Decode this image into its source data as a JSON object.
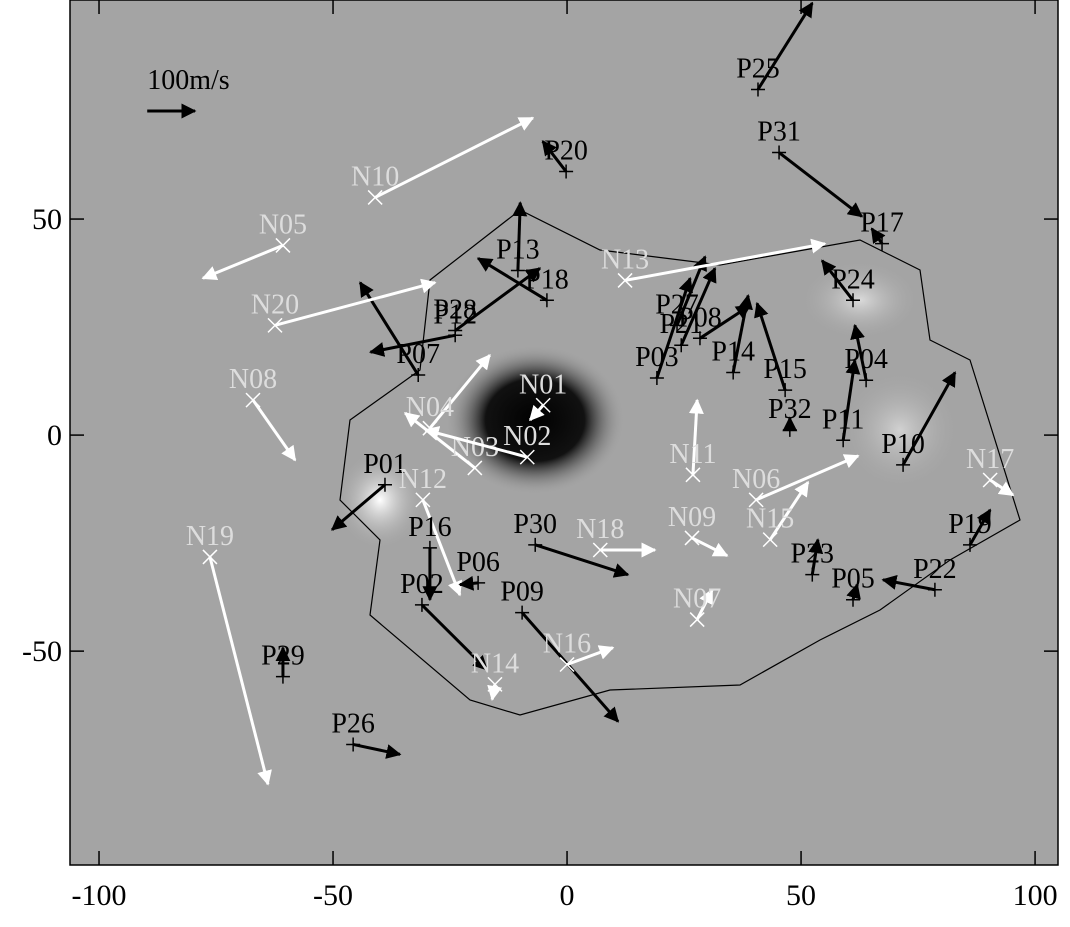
{
  "chart_data": {
    "type": "quiver",
    "xlim": [
      -106.2,
      104.9
    ],
    "ylim": [
      -99.5,
      100.7
    ],
    "xticks": [
      -100,
      -50,
      0,
      50,
      100
    ],
    "yticks": [
      -50,
      0,
      50
    ],
    "reference": {
      "label": "100m/s",
      "x": -89.7,
      "x_end": -79.5,
      "y": 75,
      "color": "#000000"
    },
    "features": [
      {
        "label": "P25",
        "x": 40.8,
        "y": 80,
        "x_end": 52.4,
        "y_end": 100,
        "color": "#000000",
        "marker": "+"
      },
      {
        "label": "P31",
        "x": 45.3,
        "y": 65.4,
        "x_end": 63,
        "y_end": 50.6,
        "color": "#000000",
        "marker": "+"
      },
      {
        "label": "P20",
        "x": -0.2,
        "y": 61,
        "x_end": -5.2,
        "y_end": 68,
        "color": "#000000",
        "marker": "+"
      },
      {
        "label": "P17",
        "x": 67.3,
        "y": 44.3,
        "x_end": 65.1,
        "y_end": 47.8,
        "color": "#000000",
        "marker": "+"
      },
      {
        "label": "P24",
        "x": 61.1,
        "y": 31.2,
        "x_end": 54.5,
        "y_end": 40.4,
        "color": "#000000",
        "marker": "+"
      },
      {
        "label": "P04",
        "x": 63.9,
        "y": 12.7,
        "x_end": 61.5,
        "y_end": 25.4,
        "color": "#000000",
        "marker": "+"
      },
      {
        "label": "P11",
        "x": 59,
        "y": -1.2,
        "x_end": 61.5,
        "y_end": 17.3,
        "color": "#000000",
        "marker": "+"
      },
      {
        "label": "P10",
        "x": 71.8,
        "y": -6.9,
        "x_end": 82.9,
        "y_end": 14.5,
        "color": "#000000",
        "marker": "+"
      },
      {
        "label": "P32",
        "x": 47.6,
        "y": 1.2,
        "x_end": 47.6,
        "y_end": 4,
        "color": "#000000",
        "marker": "+"
      },
      {
        "label": "P15",
        "x": 46.6,
        "y": 10.4,
        "x_end": 40.6,
        "y_end": 30.5,
        "color": "#000000",
        "marker": "+"
      },
      {
        "label": "P14",
        "x": 35.5,
        "y": 14.5,
        "x_end": 38.7,
        "y_end": 32.3,
        "color": "#000000",
        "marker": "+"
      },
      {
        "label": "P08",
        "x": 28.4,
        "y": 22.4,
        "x_end": 39.1,
        "y_end": 30,
        "color": "#000000",
        "marker": "+"
      },
      {
        "label": "P27",
        "x": 23.5,
        "y": 25.4,
        "x_end": 29.5,
        "y_end": 41.3,
        "color": "#000000",
        "marker": "+"
      },
      {
        "label": "P21",
        "x": 24.4,
        "y": 20.8,
        "x_end": 31.6,
        "y_end": 38.6,
        "color": "#000000",
        "marker": "+"
      },
      {
        "label": "P03",
        "x": 19.2,
        "y": 13.2,
        "x_end": 26.3,
        "y_end": 36.3,
        "color": "#000000",
        "marker": "+"
      },
      {
        "label": "N13",
        "x": 12.4,
        "y": 35.8,
        "x_end": 55.1,
        "y_end": 44.3,
        "color": "#ffffff",
        "marker": "x"
      },
      {
        "label": "P18",
        "x": -4.3,
        "y": 31.2,
        "x_end": -19,
        "y_end": 40.9,
        "color": "#000000",
        "marker": "+"
      },
      {
        "label": "P13",
        "x": -10.5,
        "y": 38.1,
        "x_end": -10,
        "y_end": 53.8,
        "color": "#000000",
        "marker": "+"
      },
      {
        "label": "P28",
        "x": -23.9,
        "y": 24.2,
        "x_end": -5.8,
        "y_end": 38.6,
        "color": "#000000",
        "marker": "+"
      },
      {
        "label": "P12",
        "x": -23.9,
        "y": 23.1,
        "x_end": -42,
        "y_end": 19.2,
        "color": "#000000",
        "marker": "+"
      },
      {
        "label": "P07",
        "x": -31.8,
        "y": 13.9,
        "x_end": -44.2,
        "y_end": 35.3,
        "color": "#000000",
        "marker": "+"
      },
      {
        "label": "N20",
        "x": -62.4,
        "y": 25.4,
        "x_end": -28.2,
        "y_end": 35.3,
        "color": "#ffffff",
        "marker": "x"
      },
      {
        "label": "N05",
        "x": -60.7,
        "y": 43.9,
        "x_end": -77.8,
        "y_end": 36.3,
        "color": "#ffffff",
        "marker": "x"
      },
      {
        "label": "N10",
        "x": -41,
        "y": 55,
        "x_end": -7.3,
        "y_end": 73.4,
        "color": "#ffffff",
        "marker": "x"
      },
      {
        "label": "N08",
        "x": -67.1,
        "y": 8.1,
        "x_end": -58.1,
        "y_end": -5.8,
        "color": "#ffffff",
        "marker": "x"
      },
      {
        "label": "N04",
        "x": -29.3,
        "y": 1.6,
        "x_end": -16.5,
        "y_end": 18.5,
        "color": "#ffffff",
        "marker": "x"
      },
      {
        "label": "N03",
        "x": -19.7,
        "y": -7.6,
        "x_end": -34.6,
        "y_end": 5.1,
        "color": "#ffffff",
        "marker": "x"
      },
      {
        "label": "N02",
        "x": -8.5,
        "y": -5.1,
        "x_end": -30.3,
        "y_end": 1.2,
        "color": "#ffffff",
        "marker": "x"
      },
      {
        "label": "N01",
        "x": -5.1,
        "y": 6.9,
        "x_end": -7.9,
        "y_end": 3.5,
        "color": "#ffffff",
        "marker": "x"
      },
      {
        "label": "P01",
        "x": -38.9,
        "y": -11.5,
        "x_end": -50.2,
        "y_end": -21.9,
        "color": "#000000",
        "marker": "+"
      },
      {
        "label": "N12",
        "x": -30.8,
        "y": -15,
        "x_end": -22.9,
        "y_end": -37,
        "color": "#ffffff",
        "marker": "x"
      },
      {
        "label": "P16",
        "x": -29.3,
        "y": -26.1,
        "x_end": -29.3,
        "y_end": -38.1,
        "color": "#000000",
        "marker": "+"
      },
      {
        "label": "P06",
        "x": -19,
        "y": -34.2,
        "x_end": -22.9,
        "y_end": -34.6,
        "color": "#000000",
        "marker": "+"
      },
      {
        "label": "P02",
        "x": -31,
        "y": -39.3,
        "x_end": -17.1,
        "y_end": -54.3,
        "color": "#000000",
        "marker": "+"
      },
      {
        "label": "P09",
        "x": -9.6,
        "y": -41.1,
        "x_end": 10.9,
        "y_end": -66.3,
        "color": "#000000",
        "marker": "+"
      },
      {
        "label": "P30",
        "x": -6.8,
        "y": -25.4,
        "x_end": 13,
        "y_end": -32.3,
        "color": "#000000",
        "marker": "+"
      },
      {
        "label": "N18",
        "x": 7.1,
        "y": -26.6,
        "x_end": 18.8,
        "y_end": -26.6,
        "color": "#ffffff",
        "marker": "x"
      },
      {
        "label": "N11",
        "x": 26.9,
        "y": -9.2,
        "x_end": 27.8,
        "y_end": 8.1,
        "color": "#ffffff",
        "marker": "x"
      },
      {
        "label": "N09",
        "x": 26.7,
        "y": -23.8,
        "x_end": 34.2,
        "y_end": -27.9,
        "color": "#ffffff",
        "marker": "x"
      },
      {
        "label": "N06",
        "x": 40.4,
        "y": -15,
        "x_end": 62.2,
        "y_end": -4.8,
        "color": "#ffffff",
        "marker": "x"
      },
      {
        "label": "N15",
        "x": 43.4,
        "y": -24.2,
        "x_end": 51.5,
        "y_end": -10.9,
        "color": "#ffffff",
        "marker": "x"
      },
      {
        "label": "N07",
        "x": 27.8,
        "y": -42.7,
        "x_end": 31,
        "y_end": -35.8,
        "color": "#ffffff",
        "marker": "x"
      },
      {
        "label": "P23",
        "x": 52.4,
        "y": -32.3,
        "x_end": 53.6,
        "y_end": -24.2,
        "color": "#000000",
        "marker": "+"
      },
      {
        "label": "P05",
        "x": 61.1,
        "y": -38.1,
        "x_end": 62,
        "y_end": -34.6,
        "color": "#000000",
        "marker": "+"
      },
      {
        "label": "P22",
        "x": 78.6,
        "y": -35.8,
        "x_end": 67.5,
        "y_end": -33.5,
        "color": "#000000",
        "marker": "+"
      },
      {
        "label": "P19",
        "x": 86.1,
        "y": -25.4,
        "x_end": 90.4,
        "y_end": -17.3,
        "color": "#000000",
        "marker": "+"
      },
      {
        "label": "N17",
        "x": 90.4,
        "y": -10.4,
        "x_end": 95.3,
        "y_end": -13.9,
        "color": "#ffffff",
        "marker": "x"
      },
      {
        "label": "N19",
        "x": -76.3,
        "y": -28.2,
        "x_end": -63.9,
        "y_end": -80.8,
        "color": "#ffffff",
        "marker": "x"
      },
      {
        "label": "N14",
        "x": -15.4,
        "y": -57.7,
        "x_end": -16,
        "y_end": -61.2,
        "color": "#ffffff",
        "marker": "x"
      },
      {
        "label": "N16",
        "x": 0,
        "y": -53.1,
        "x_end": 9.8,
        "y_end": -49.2,
        "color": "#ffffff",
        "marker": "x"
      },
      {
        "label": "P29",
        "x": -60.7,
        "y": -55.9,
        "x_end": -60.7,
        "y_end": -49.2,
        "color": "#000000",
        "marker": "+"
      },
      {
        "label": "P26",
        "x": -45.7,
        "y": -71.6,
        "x_end": -35.7,
        "y_end": -73.9,
        "color": "#000000",
        "marker": "+"
      }
    ]
  }
}
